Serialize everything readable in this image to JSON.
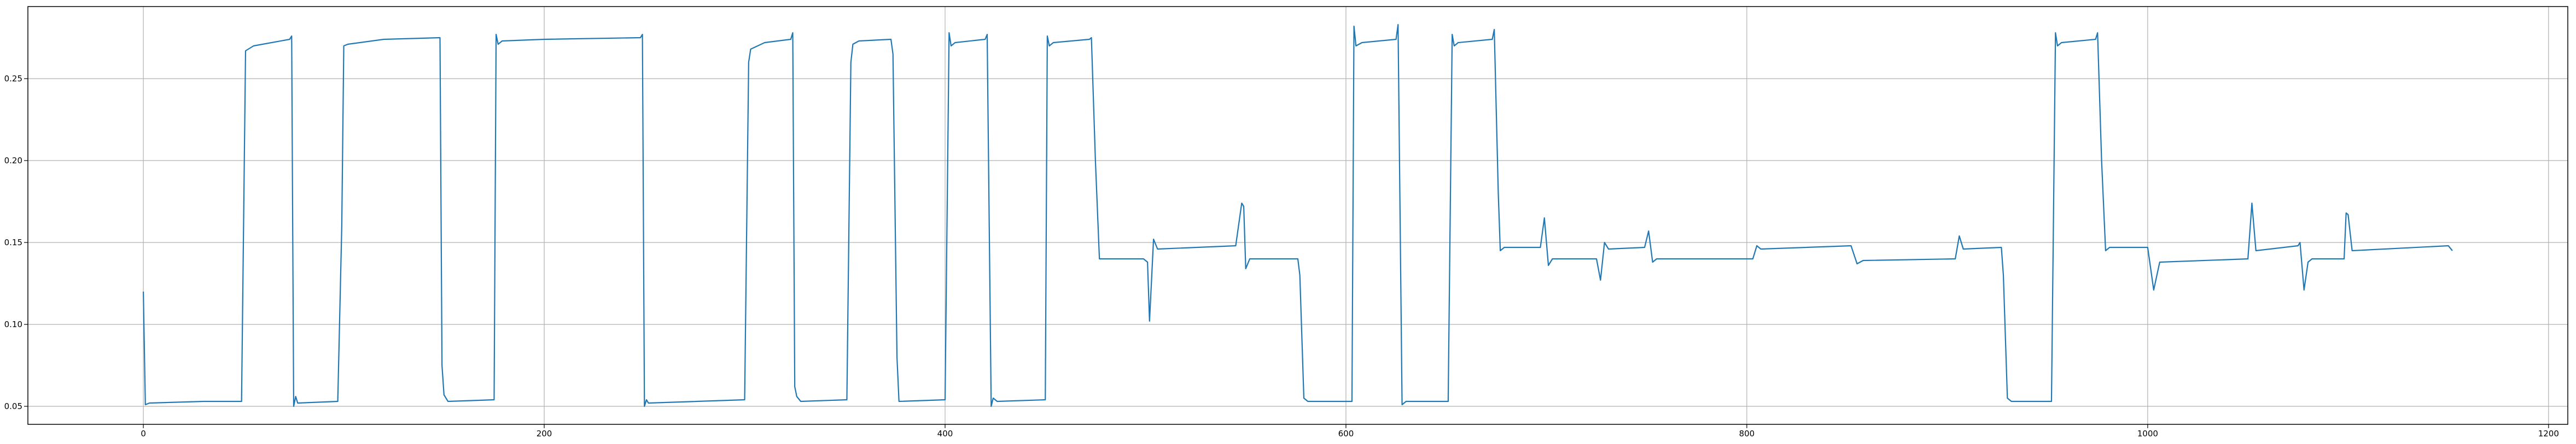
{
  "chart_data": {
    "type": "line",
    "x": [
      0,
      1,
      3,
      30,
      49,
      50,
      51,
      55,
      73,
      74,
      75,
      76,
      77,
      97,
      99,
      100,
      102,
      120,
      148,
      149,
      150,
      152,
      175,
      176,
      177,
      179,
      200,
      248,
      249,
      250,
      251,
      252,
      300,
      302,
      303,
      310,
      323,
      324,
      325,
      326,
      328,
      351,
      353,
      354,
      357,
      373,
      374,
      376,
      377,
      400,
      402,
      403,
      405,
      420,
      421,
      423,
      424,
      426,
      450,
      451,
      452,
      454,
      472,
      473,
      475,
      477,
      499,
      501,
      502,
      504,
      506,
      545,
      548,
      549,
      550,
      552,
      576,
      577,
      579,
      581,
      603,
      604,
      605,
      608,
      625,
      626,
      628,
      630,
      651,
      653,
      654,
      656,
      673,
      674,
      676,
      677,
      679,
      697,
      699,
      701,
      703,
      725,
      727,
      729,
      731,
      749,
      751,
      753,
      755,
      803,
      805,
      807,
      852,
      855,
      858,
      904,
      906,
      908,
      927,
      928,
      930,
      932,
      952,
      954,
      955,
      957,
      974,
      975,
      977,
      979,
      981,
      1000,
      1003,
      1006,
      1050,
      1052,
      1054,
      1075,
      1076,
      1078,
      1080,
      1082,
      1098,
      1099,
      1100,
      1102,
      1150,
      1152
    ],
    "series": [
      {
        "color": "#1f77b4",
        "values": [
          0.12,
          0.051,
          0.052,
          0.053,
          0.053,
          0.16,
          0.267,
          0.27,
          0.274,
          0.276,
          0.05,
          0.056,
          0.052,
          0.053,
          0.16,
          0.27,
          0.271,
          0.274,
          0.275,
          0.075,
          0.057,
          0.053,
          0.054,
          0.277,
          0.271,
          0.273,
          0.274,
          0.275,
          0.277,
          0.05,
          0.054,
          0.052,
          0.054,
          0.26,
          0.268,
          0.272,
          0.274,
          0.278,
          0.062,
          0.056,
          0.053,
          0.054,
          0.26,
          0.271,
          0.273,
          0.274,
          0.265,
          0.08,
          0.053,
          0.054,
          0.278,
          0.27,
          0.272,
          0.274,
          0.277,
          0.05,
          0.055,
          0.053,
          0.054,
          0.276,
          0.27,
          0.272,
          0.274,
          0.275,
          0.2,
          0.14,
          0.14,
          0.138,
          0.102,
          0.152,
          0.146,
          0.148,
          0.174,
          0.172,
          0.134,
          0.14,
          0.14,
          0.13,
          0.055,
          0.053,
          0.053,
          0.282,
          0.27,
          0.272,
          0.274,
          0.283,
          0.051,
          0.053,
          0.053,
          0.277,
          0.27,
          0.272,
          0.274,
          0.28,
          0.18,
          0.145,
          0.147,
          0.147,
          0.165,
          0.136,
          0.14,
          0.14,
          0.127,
          0.15,
          0.146,
          0.147,
          0.157,
          0.138,
          0.14,
          0.14,
          0.148,
          0.146,
          0.148,
          0.137,
          0.139,
          0.14,
          0.154,
          0.146,
          0.147,
          0.13,
          0.055,
          0.053,
          0.053,
          0.278,
          0.27,
          0.272,
          0.274,
          0.278,
          0.2,
          0.145,
          0.147,
          0.147,
          0.121,
          0.138,
          0.14,
          0.174,
          0.145,
          0.148,
          0.15,
          0.121,
          0.138,
          0.14,
          0.14,
          0.168,
          0.167,
          0.145,
          0.148,
          0.145
        ]
      }
    ],
    "xlim": [
      -57.6,
      1209.6
    ],
    "xticks": [
      0,
      200,
      400,
      600,
      800,
      1000,
      1200
    ],
    "ylim": [
      0.039,
      0.294
    ],
    "yticks": [
      0.05,
      {
        "value": 0.1,
        "label": "0.10"
      },
      0.15,
      {
        "value": 0.2,
        "label": "0.20"
      },
      0.25
    ],
    "grid": true
  }
}
